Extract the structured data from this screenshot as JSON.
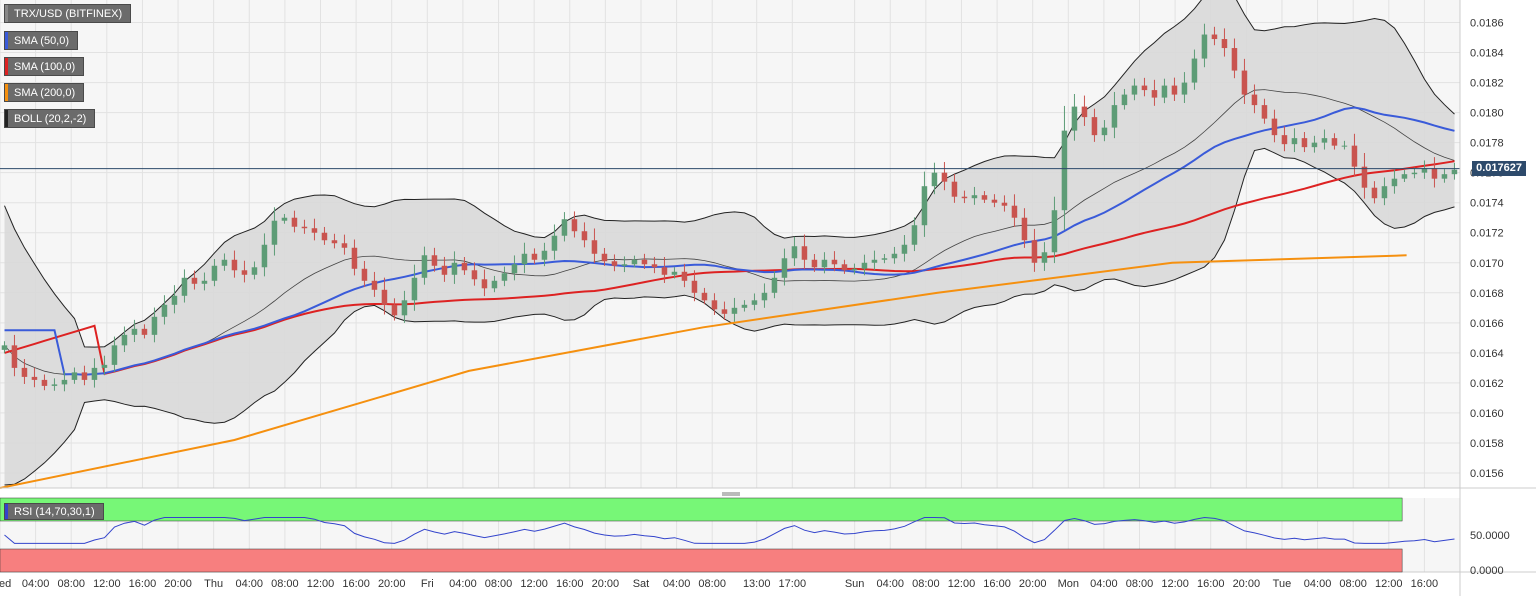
{
  "chart_data": [
    {
      "type": "candlestick",
      "title": "TRX/USD (BITFINEX)",
      "indicators": [
        {
          "label": "SMA (50,0)",
          "color": "#3a5bd9"
        },
        {
          "label": "SMA (100,0)",
          "color": "#dd2222"
        },
        {
          "label": "SMA (200,0)",
          "color": "#f5900f"
        },
        {
          "label": "BOLL (20,2,-2)",
          "color": "#222222"
        }
      ],
      "y_ticks": [
        "0.0156",
        "0.0158",
        "0.0160",
        "0.0162",
        "0.0164",
        "0.0166",
        "0.0168",
        "0.0170",
        "0.0172",
        "0.0174",
        "0.0176",
        "0.0178",
        "0.0180",
        "0.0182",
        "0.0184",
        "0.0186"
      ],
      "ylim": [
        0.0155,
        0.01875
      ],
      "last_price": 0.017627,
      "last_price_label": "0.017627",
      "x_labels": [
        "Wed",
        "04:00",
        "08:00",
        "12:00",
        "16:00",
        "20:00",
        "Thu",
        "04:00",
        "08:00",
        "12:00",
        "16:00",
        "20:00",
        "Fri",
        "04:00",
        "08:00",
        "12:00",
        "16:00",
        "20:00",
        "Sat",
        "04:00",
        "08:00",
        "13:00",
        "17:00",
        "Sun",
        "04:00",
        "08:00",
        "12:00",
        "16:00",
        "20:00",
        "Mon",
        "04:00",
        "08:00",
        "12:00",
        "16:00",
        "20:00",
        "Tue",
        "04:00",
        "08:00",
        "12:00",
        "16:00"
      ],
      "x_ticks_hours": [
        0,
        4,
        8,
        12,
        16,
        20,
        24,
        28,
        32,
        36,
        40,
        44,
        48,
        52,
        56,
        60,
        64,
        68,
        72,
        76,
        80,
        85,
        89,
        96,
        100,
        104,
        108,
        112,
        116,
        120,
        124,
        128,
        132,
        136,
        140,
        144,
        148,
        152,
        156,
        160
      ],
      "closes": [
        0.01645,
        0.0163,
        0.01624,
        0.01622,
        0.01618,
        0.01619,
        0.01622,
        0.01627,
        0.01622,
        0.0163,
        0.01632,
        0.01645,
        0.01652,
        0.01656,
        0.01652,
        0.01664,
        0.01672,
        0.01678,
        0.0169,
        0.01686,
        0.01688,
        0.01698,
        0.01702,
        0.01695,
        0.01692,
        0.01697,
        0.01712,
        0.01728,
        0.0173,
        0.01724,
        0.01723,
        0.0172,
        0.01715,
        0.01713,
        0.0171,
        0.01696,
        0.01688,
        0.01682,
        0.01672,
        0.01665,
        0.01675,
        0.0169,
        0.01705,
        0.01698,
        0.01692,
        0.017,
        0.01695,
        0.01689,
        0.01683,
        0.01688,
        0.01693,
        0.01699,
        0.01706,
        0.01702,
        0.01708,
        0.01718,
        0.01729,
        0.01721,
        0.01715,
        0.01706,
        0.01701,
        0.01698,
        0.01699,
        0.01702,
        0.01699,
        0.01697,
        0.01692,
        0.01694,
        0.01688,
        0.0168,
        0.01675,
        0.01669,
        0.01666,
        0.0167,
        0.01672,
        0.01675,
        0.0168,
        0.0169,
        0.01703,
        0.01711,
        0.01702,
        0.01697,
        0.01702,
        0.01699,
        0.01695,
        0.01696,
        0.017,
        0.01702,
        0.01703,
        0.01706,
        0.01712,
        0.01725,
        0.01751,
        0.0176,
        0.01754,
        0.01744,
        0.01743,
        0.01745,
        0.01742,
        0.0174,
        0.01738,
        0.0173,
        0.01715,
        0.017,
        0.01707,
        0.01735,
        0.01788,
        0.01804,
        0.01797,
        0.01785,
        0.0179,
        0.01805,
        0.01812,
        0.01818,
        0.01815,
        0.0181,
        0.01818,
        0.01812,
        0.0182,
        0.01836,
        0.01852,
        0.01849,
        0.01843,
        0.01828,
        0.01812,
        0.01805,
        0.01796,
        0.01785,
        0.01779,
        0.01783,
        0.01777,
        0.0178,
        0.01783,
        0.01778,
        0.01778,
        0.01764,
        0.0175,
        0.01743,
        0.01751,
        0.01756,
        0.01759,
        0.0176,
        0.01763,
        0.01756,
        0.01759,
        0.01762
      ],
      "series": [
        {
          "name": "SMA (200,0)",
          "values": [
            0.0155,
            0.01582,
            0.01628,
            0.01657,
            0.0168,
            0.017,
            0.01705
          ]
        }
      ],
      "rsi": {
        "label": "RSI (14,70,30,1)",
        "ticks": [
          "50.0000",
          "0.0000"
        ],
        "overbought": 70,
        "oversold": 30,
        "colors": {
          "overbought": "#77f777",
          "oversold": "#f77f7f",
          "line": "#3344cc"
        }
      }
    }
  ]
}
